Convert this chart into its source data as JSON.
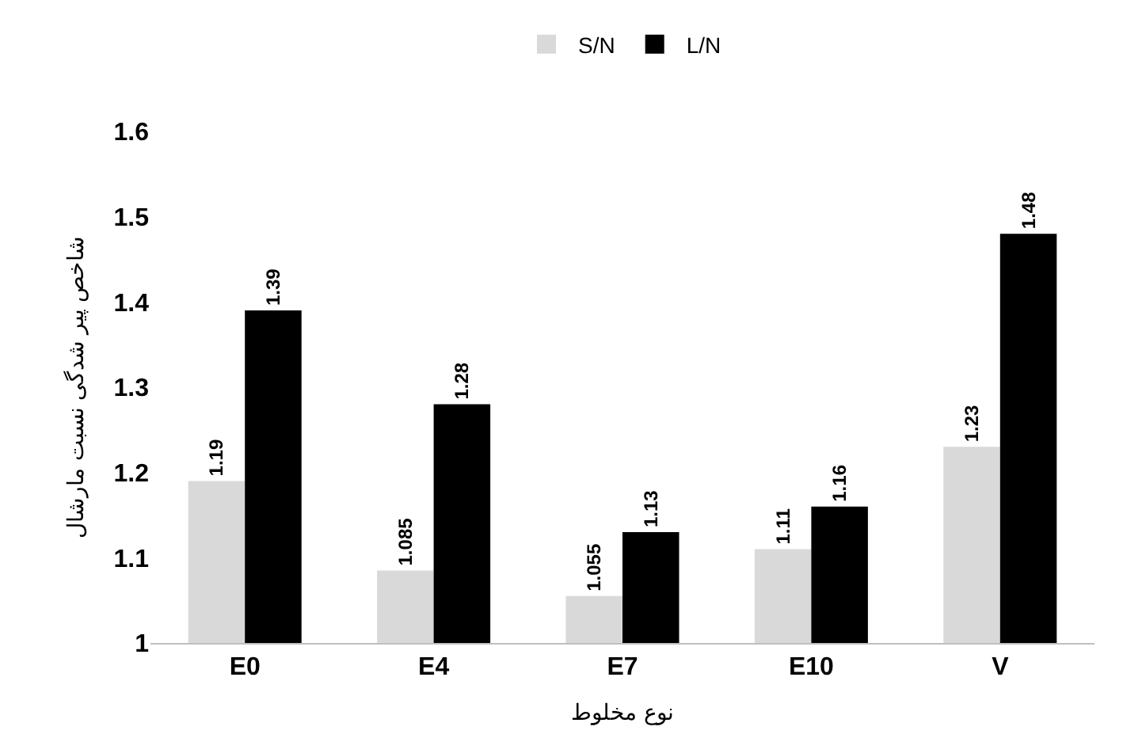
{
  "chart_data": {
    "type": "bar",
    "xlabel": "نوع مخلوط",
    "ylabel": "شاخص پیر شدگی نسبت مارشال",
    "categories": [
      "E0",
      "E4",
      "E7",
      "E10",
      "V"
    ],
    "series": [
      {
        "name": "S/N",
        "color": "#d9d9d9",
        "values": [
          1.19,
          1.085,
          1.055,
          1.11,
          1.23
        ]
      },
      {
        "name": "L/N",
        "color": "#000000",
        "values": [
          1.39,
          1.28,
          1.13,
          1.16,
          1.48
        ]
      }
    ],
    "ylim": [
      1,
      1.6
    ],
    "yticks": [
      {
        "value": 1,
        "label": "1"
      },
      {
        "value": 1.1,
        "label": "1.1"
      },
      {
        "value": 1.2,
        "label": "1.2"
      },
      {
        "value": 1.3,
        "label": "1.3"
      },
      {
        "value": 1.4,
        "label": "1.4"
      },
      {
        "value": 1.5,
        "label": "1.5"
      },
      {
        "value": 1.6,
        "label": "1.6"
      }
    ],
    "data_labels": true,
    "legend": "top"
  }
}
